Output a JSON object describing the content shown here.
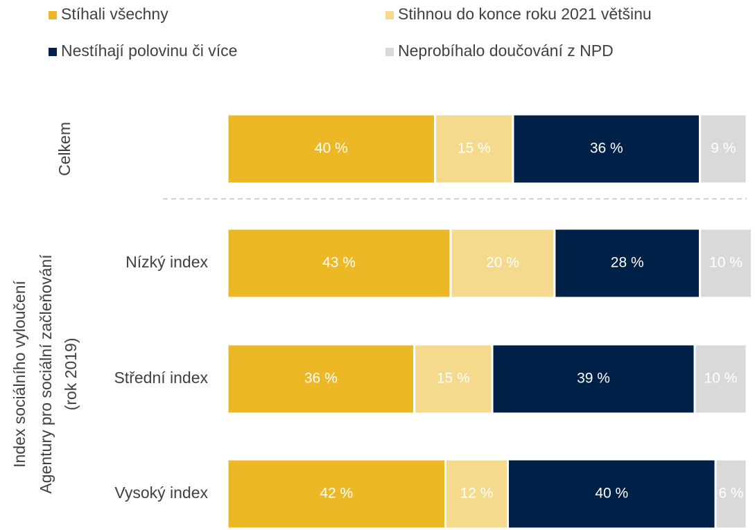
{
  "chart_data": {
    "type": "stacked_barh",
    "categories": [
      "Celkem",
      "Nízký index",
      "Střední index",
      "Vysoký index"
    ],
    "group_label": [
      "Index sociálního vyloučení",
      "Agentury pro sociální začleňování",
      "(rok 2019)"
    ],
    "series": [
      {
        "name": "Stíhali všechny",
        "color": "#ECB826",
        "values": [
          40,
          43,
          36,
          42
        ],
        "value_labels": [
          "40 %",
          "43 %",
          "36 %",
          "42 %"
        ]
      },
      {
        "name": "Stihnou do konce roku 2021 většinu",
        "color": "#F5D98C",
        "values": [
          15,
          20,
          15,
          12
        ],
        "value_labels": [
          "15 %",
          "20 %",
          "15 %",
          "12 %"
        ]
      },
      {
        "name": "Nestíhají polovinu či více",
        "color": "#002147",
        "values": [
          36,
          28,
          39,
          40
        ],
        "value_labels": [
          "36 %",
          "28 %",
          "39 %",
          "40 %"
        ]
      },
      {
        "name": "Neprobíhalo doučování z NPD",
        "color": "#D9D9D9",
        "values": [
          9,
          10,
          10,
          6
        ],
        "value_labels": [
          "9 %",
          "10 %",
          "10 %",
          "6 %"
        ]
      }
    ],
    "xlim": [
      0,
      100
    ],
    "legend": "top"
  }
}
